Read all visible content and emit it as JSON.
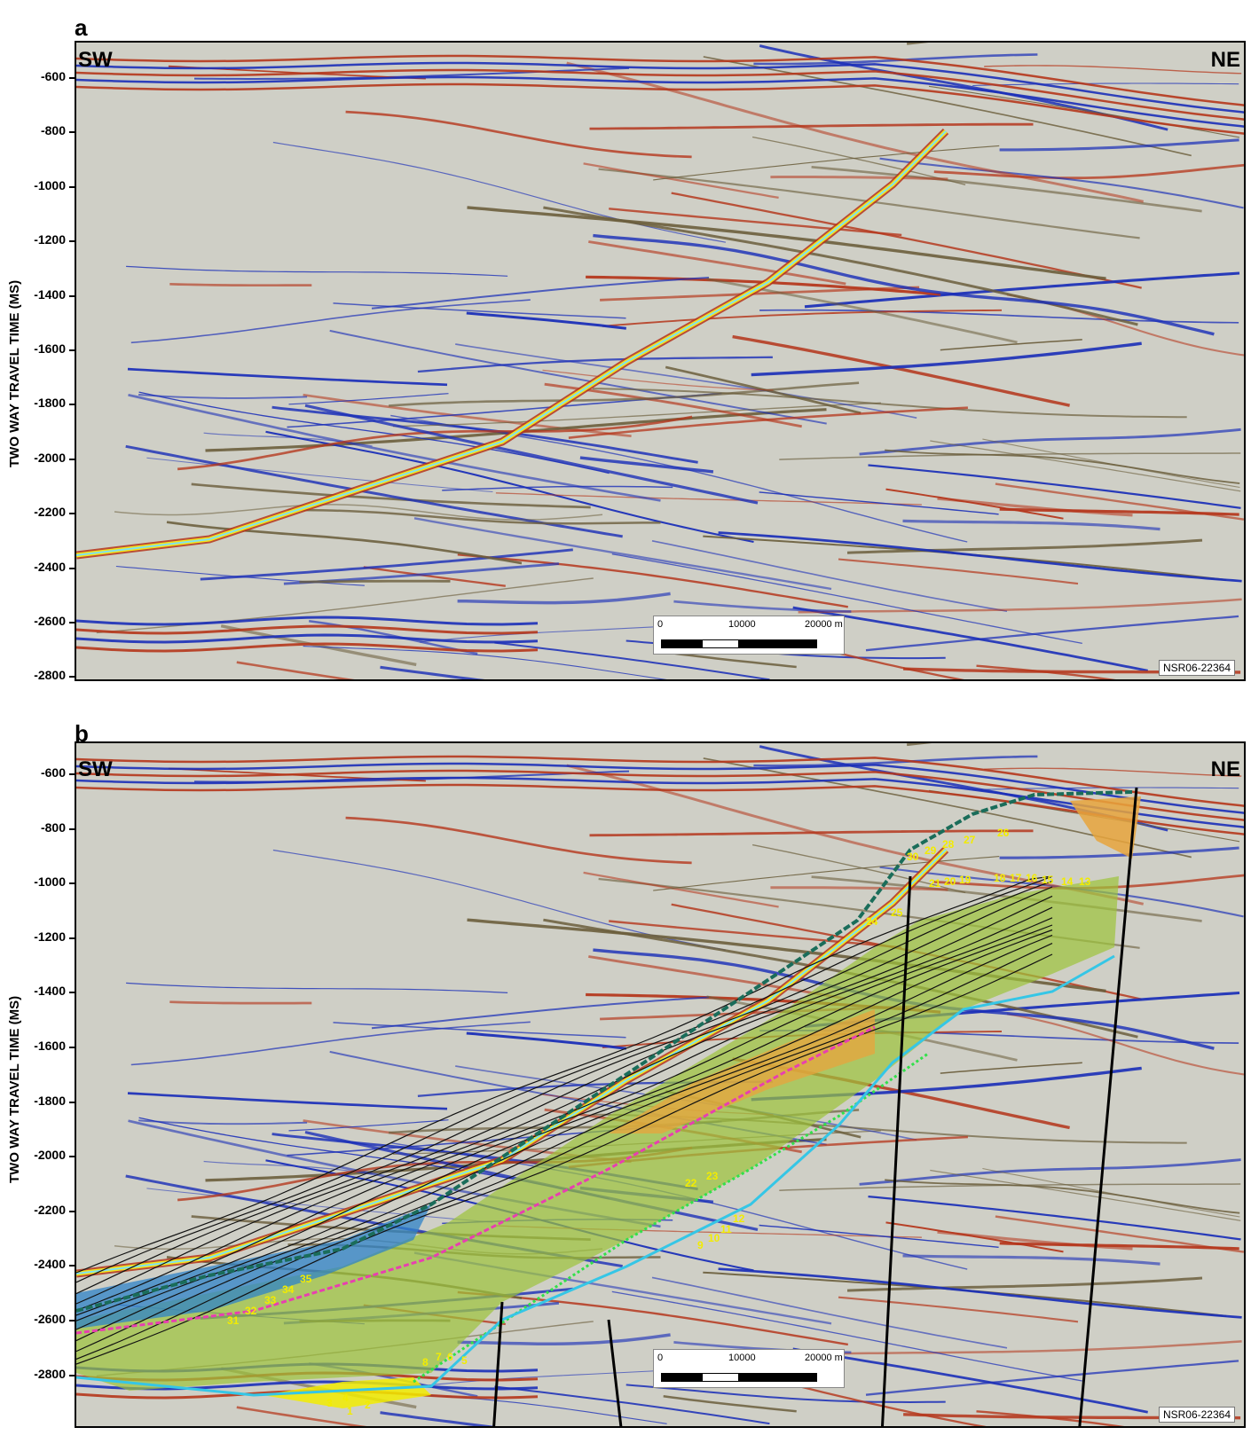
{
  "panel_a": {
    "letter": "a",
    "y_axis_label": "TWO WAY TRAVEL TIME (MS)",
    "y_ticks": [
      "-600",
      "-800",
      "-1000",
      "-1200",
      "-1400",
      "-1600",
      "-1800",
      "-2000",
      "-2200",
      "-2400",
      "-2600",
      "-2800"
    ],
    "left_direction": "SW",
    "right_direction": "NE",
    "scale_labels": [
      "0",
      "10000",
      "20000 m"
    ],
    "line_id": "NSR06-22364"
  },
  "panel_b": {
    "letter": "b",
    "y_axis_label": "TWO WAY TRAVEL TIME (MS)",
    "y_ticks": [
      "-600",
      "-800",
      "-1000",
      "-1200",
      "-1400",
      "-1600",
      "-1800",
      "-2000",
      "-2200",
      "-2400",
      "-2600",
      "-2800"
    ],
    "left_direction": "SW",
    "right_direction": "NE",
    "scale_labels": [
      "0",
      "10000",
      "20000 m"
    ],
    "line_id": "NSR06-22364",
    "horizon_labels": [
      "1",
      "2",
      "3",
      "4",
      "5",
      "6",
      "7",
      "8",
      "9",
      "10",
      "11",
      "12",
      "13",
      "14",
      "15",
      "16",
      "17",
      "18",
      "19",
      "20",
      "21",
      "22",
      "23",
      "24",
      "25",
      "26",
      "27",
      "28",
      "29",
      "30",
      "31",
      "32",
      "33",
      "34",
      "35"
    ]
  },
  "colors": {
    "seismic_background": "#cfcfc6",
    "reflector_blue": "#1b2fb8",
    "reflector_red": "#b5361b",
    "reflector_yellow": "#f5e21a",
    "reflector_cyan": "#7de2f2",
    "package_green": "#9cc33a",
    "package_orange": "#e8a43c",
    "package_blue": "#2f83c8",
    "label_yellow": "#f2ec00",
    "fault_black": "#000000"
  }
}
